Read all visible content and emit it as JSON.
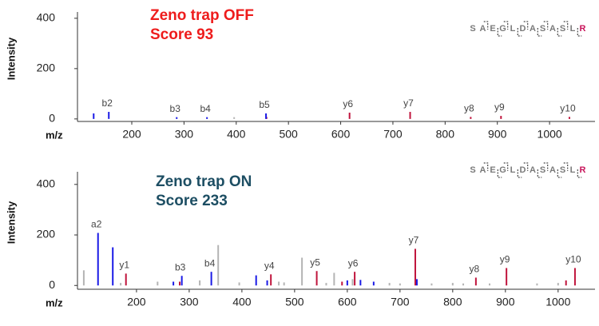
{
  "chart_data": [
    {
      "type": "stem",
      "title": "Zeno trap OFF",
      "subtitle": "Score 93",
      "title_color": "#ee1c1c",
      "sequence": [
        "S",
        "A",
        "E",
        "G",
        "L",
        "D",
        "A",
        "S",
        "A",
        "S",
        "L",
        "R"
      ],
      "sequence_color": "#7a7a7a",
      "sequence_last_color": "#c8145a",
      "x_label": "m/z",
      "y_label": "Intensity",
      "xlim": [
        96,
        1087
      ],
      "ylim": [
        -10,
        425
      ],
      "xticks": [
        200,
        300,
        400,
        500,
        600,
        700,
        800,
        900,
        1000
      ],
      "yticks": [
        0,
        200,
        400
      ],
      "series": [
        {
          "color": "#1a1ae6",
          "x": [
            127,
            156,
            286,
            344,
            457
          ],
          "values": [
            22,
            28,
            7,
            7,
            22
          ],
          "labels": [
            null,
            "b2",
            "b3",
            "b4",
            "b5"
          ]
        },
        {
          "color": "#c0143c",
          "x": [
            458,
            617,
            733,
            849,
            907,
            1038
          ],
          "values": [
            8,
            25,
            28,
            8,
            12,
            8
          ],
          "labels": [
            null,
            "y6",
            "y7",
            "y8",
            "y9",
            "y10"
          ]
        },
        {
          "color": "#b4b4b4",
          "x": [
            396
          ],
          "values": [
            7
          ],
          "labels": [
            null
          ]
        }
      ]
    },
    {
      "type": "stem",
      "title": "Zeno trap ON",
      "subtitle": "Score 233",
      "title_color": "#1d4e63",
      "sequence": [
        "S",
        "A",
        "E",
        "G",
        "L",
        "D",
        "A",
        "S",
        "A",
        "S",
        "L",
        "R"
      ],
      "sequence_color": "#7a7a7a",
      "sequence_last_color": "#c8145a",
      "x_label": "m/z",
      "y_label": "Intensity",
      "xlim": [
        88,
        1070
      ],
      "ylim": [
        -15,
        450
      ],
      "xticks": [
        200,
        300,
        400,
        500,
        600,
        700,
        800,
        900,
        1000
      ],
      "yticks": [
        0,
        200,
        400
      ],
      "series": [
        {
          "color": "#1a1ae6",
          "x": [
            127,
            155,
            270,
            286,
            342,
            427,
            448,
            600,
            625,
            650,
            732
          ],
          "values": [
            208,
            151,
            15,
            38,
            54,
            40,
            20,
            20,
            22,
            15,
            25
          ],
          "labels": [
            "a2",
            null,
            null,
            "b3",
            "b4",
            null,
            null,
            null,
            null,
            null,
            null
          ]
        },
        {
          "color": "#c0143c",
          "x": [
            180,
            282,
            455,
            542,
            590,
            614,
            729,
            844,
            902,
            1015,
            1032
          ],
          "values": [
            47,
            15,
            44,
            57,
            15,
            54,
            145,
            31,
            69,
            20,
            69
          ],
          "labels": [
            "y1",
            null,
            "y4",
            "y5",
            null,
            "y6",
            "y7",
            "y8",
            "y9",
            null,
            "y10"
          ]
        },
        {
          "color": "#b4b4b4",
          "x": [
            100,
            170,
            240,
            320,
            355,
            395,
            470,
            480,
            514,
            560,
            575,
            610,
            680,
            700,
            760,
            800,
            820,
            870,
            960,
            1000
          ],
          "values": [
            60,
            10,
            15,
            20,
            160,
            12,
            15,
            12,
            110,
            10,
            50,
            25,
            10,
            8,
            8,
            10,
            8,
            8,
            8,
            10
          ],
          "labels": [
            null,
            null,
            null,
            null,
            null,
            null,
            null,
            null,
            null,
            null,
            null,
            null,
            null,
            null,
            null,
            null,
            null,
            null,
            null,
            null
          ]
        }
      ]
    }
  ]
}
